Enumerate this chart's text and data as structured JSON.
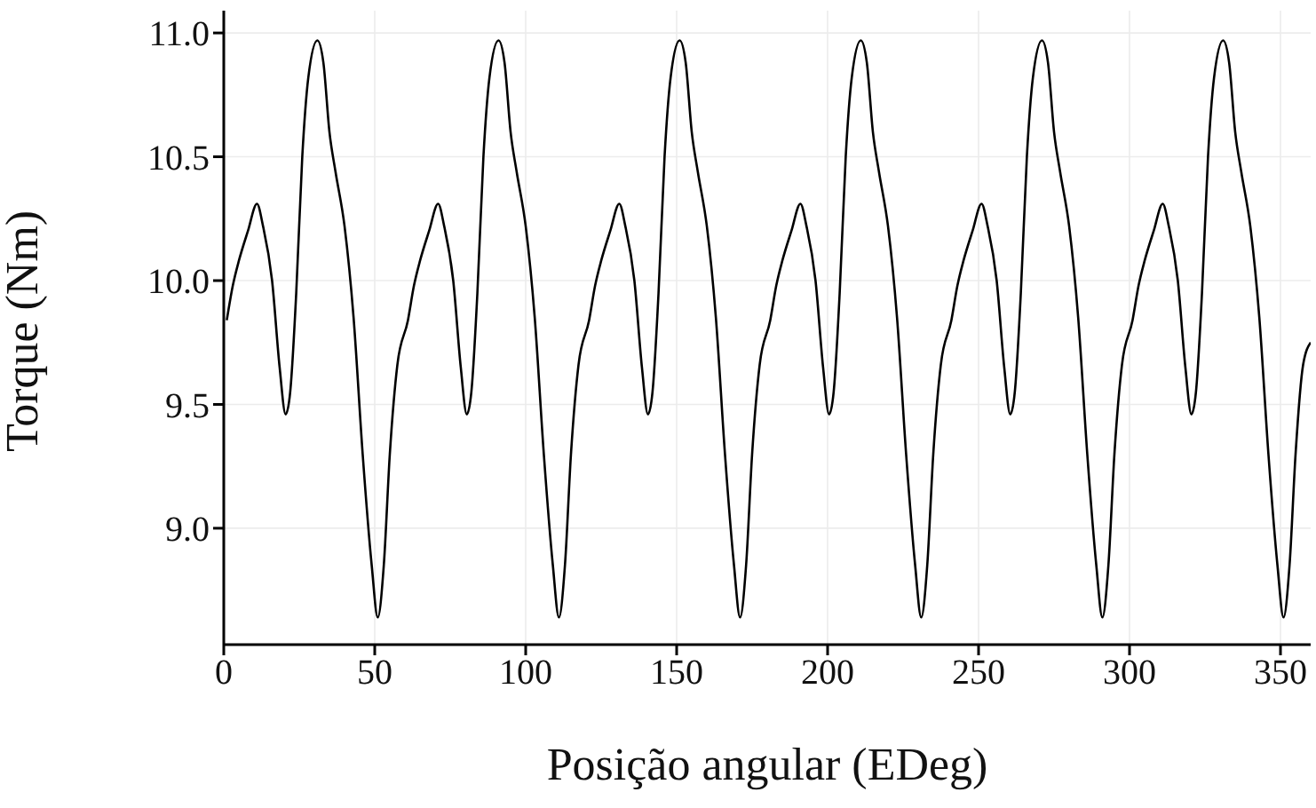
{
  "chart_data": {
    "type": "line",
    "xlabel": "Posição angular (EDeg)",
    "ylabel": "Torque (Nm)",
    "xlim": [
      0,
      360
    ],
    "ylim": [
      8.53,
      11.09
    ],
    "xticks": [
      0,
      50,
      100,
      150,
      200,
      250,
      300,
      350
    ],
    "yticks": [
      {
        "value": 9.0,
        "label": "9.0"
      },
      {
        "value": 9.5,
        "label": "9.5"
      },
      {
        "value": 10.0,
        "label": "10.0"
      },
      {
        "value": 10.5,
        "label": "10.5"
      },
      {
        "value": 11.0,
        "label": "11.0"
      }
    ],
    "grid": true,
    "marker": "none",
    "line_style": "solid",
    "series": [
      {
        "color": "#000000",
        "x": [
          1,
          3,
          5,
          8,
          11,
          13,
          16,
          18.5,
          20.5,
          22,
          24,
          26,
          28,
          31,
          33,
          35,
          37,
          40,
          43,
          46,
          49,
          51,
          53,
          55,
          57.5,
          61,
          63,
          65,
          68,
          71,
          73,
          76,
          78.5,
          80.5,
          82,
          84,
          86,
          88,
          91,
          93,
          95,
          97,
          100,
          103,
          106,
          109,
          111,
          113,
          115,
          117.5,
          121,
          123,
          125,
          128,
          131,
          133,
          136,
          138.5,
          140.5,
          142,
          144,
          146,
          148,
          151,
          153,
          155,
          157,
          160,
          163,
          166,
          169,
          171,
          173,
          175,
          177.5,
          181,
          183,
          185,
          188,
          191,
          193,
          196,
          198.5,
          200.5,
          202,
          204,
          206,
          208,
          211,
          213,
          215,
          217,
          220,
          223,
          226,
          229,
          231,
          233,
          235,
          237.5,
          241,
          243,
          245,
          248,
          251,
          253,
          256,
          258.5,
          260.5,
          262,
          264,
          266,
          268,
          271,
          273,
          275,
          277,
          280,
          283,
          286,
          289,
          291,
          293,
          295,
          297.5,
          301,
          303,
          305,
          308,
          311,
          313,
          316,
          318.5,
          320.5,
          322,
          324,
          326,
          328,
          331,
          333,
          335,
          337,
          340,
          343,
          346,
          349,
          351,
          353,
          355,
          357.5,
          360
        ],
        "values": [
          9.84,
          9.98,
          10.08,
          10.2,
          10.31,
          10.22,
          10.0,
          9.65,
          9.46,
          9.55,
          9.95,
          10.5,
          10.82,
          10.97,
          10.88,
          10.6,
          10.44,
          10.22,
          9.85,
          9.3,
          8.85,
          8.64,
          8.85,
          9.3,
          9.66,
          9.84,
          9.98,
          10.08,
          10.2,
          10.31,
          10.22,
          10.0,
          9.65,
          9.46,
          9.55,
          9.95,
          10.5,
          10.82,
          10.97,
          10.88,
          10.6,
          10.44,
          10.22,
          9.85,
          9.3,
          8.85,
          8.64,
          8.85,
          9.3,
          9.66,
          9.84,
          9.98,
          10.08,
          10.2,
          10.31,
          10.22,
          10.0,
          9.65,
          9.46,
          9.55,
          9.95,
          10.5,
          10.82,
          10.97,
          10.88,
          10.6,
          10.44,
          10.22,
          9.85,
          9.3,
          8.85,
          8.64,
          8.85,
          9.3,
          9.66,
          9.84,
          9.98,
          10.08,
          10.2,
          10.31,
          10.22,
          10.0,
          9.65,
          9.46,
          9.55,
          9.95,
          10.5,
          10.82,
          10.97,
          10.88,
          10.6,
          10.44,
          10.22,
          9.85,
          9.3,
          8.85,
          8.64,
          8.85,
          9.3,
          9.66,
          9.84,
          9.98,
          10.08,
          10.2,
          10.31,
          10.22,
          10.0,
          9.65,
          9.46,
          9.55,
          9.95,
          10.5,
          10.82,
          10.97,
          10.88,
          10.6,
          10.44,
          10.22,
          9.85,
          9.3,
          8.85,
          8.64,
          8.85,
          9.3,
          9.66,
          9.84,
          9.98,
          10.08,
          10.2,
          10.31,
          10.22,
          10.0,
          9.65,
          9.46,
          9.55,
          9.95,
          10.5,
          10.82,
          10.97,
          10.88,
          10.6,
          10.44,
          10.22,
          9.85,
          9.3,
          8.85,
          8.64,
          8.85,
          9.3,
          9.66,
          9.75
        ]
      }
    ]
  }
}
